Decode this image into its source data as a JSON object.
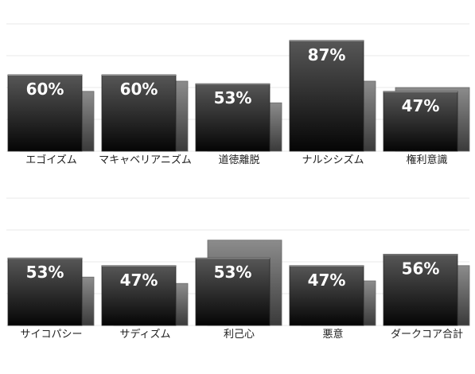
{
  "chart_data": [
    {
      "type": "bar",
      "categories": [
        "エゴイズム",
        "マキャベリアニズム",
        "道徳離脱",
        "ナルシシズム",
        "権利意識"
      ],
      "series": [
        {
          "values": [
            60,
            60,
            53,
            87,
            47
          ],
          "data_labels": [
            "60%",
            "60%",
            "53%",
            "87%",
            "47%"
          ]
        },
        {
          "values": [
            47,
            55,
            38,
            55,
            50
          ]
        }
      ],
      "ylim": [
        0,
        100
      ],
      "grid": true,
      "xlabel": "",
      "ylabel": ""
    },
    {
      "type": "bar",
      "categories": [
        "サイコパシー",
        "サディズム",
        "利己心",
        "悪意",
        "ダークコア合計"
      ],
      "series": [
        {
          "values": [
            53,
            47,
            53,
            47,
            56
          ],
          "data_labels": [
            "53%",
            "47%",
            "53%",
            "47%",
            "56%"
          ]
        },
        {
          "values": [
            38,
            33,
            67,
            35,
            47
          ]
        }
      ],
      "ylim": [
        0,
        100
      ],
      "grid": true,
      "xlabel": "",
      "ylabel": ""
    }
  ],
  "colors": {
    "front_bar_top": "#575757",
    "front_bar_bottom": "#050505",
    "back_bar_top": "#8c8c8c",
    "back_bar_bottom": "#3a3a3a",
    "gridline": "#e8e8e8"
  }
}
